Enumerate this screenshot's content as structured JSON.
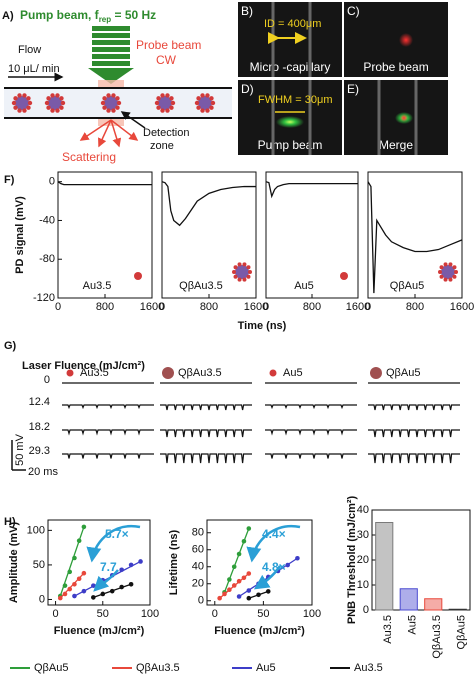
{
  "panel_a": {
    "label": "A)",
    "pump": "Pump beam, f",
    "rep": "rep",
    "pump_rate": " = 50 Hz",
    "flow": "Flow",
    "rate": "10 μL/ min",
    "probe": "Probe beam",
    "cw": "CW",
    "detection": "Detection",
    "zone": "zone",
    "scattering": "Scattering"
  },
  "panel_b": {
    "label": "B)",
    "id": "ID = 400μm",
    "caption": "Micro -capillary"
  },
  "panel_c": {
    "label": "C)",
    "caption": "Probe beam"
  },
  "panel_d": {
    "label": "D)",
    "fwhm": "FWHM = 30μm",
    "caption": "Pump beam"
  },
  "panel_e": {
    "label": "E)",
    "caption": "Merge"
  },
  "panel_f": {
    "label": "F)",
    "ylabel": "PD signal (mV)",
    "xlabel": "Time (ns)"
  },
  "panel_g": {
    "label": "G)",
    "title": "Laser Fluence (mJ/cm²)",
    "columns": [
      "Au3.5",
      "QβAu3.5",
      "Au5",
      "QβAu5"
    ],
    "rows": [
      0,
      12.4,
      18.2,
      29.3
    ],
    "scale_v": "50 mV",
    "scale_t": "20 ms"
  },
  "panel_h": {
    "label": "H)"
  },
  "chart_data": [
    {
      "type": "line",
      "x": [
        0,
        50,
        100,
        150,
        200,
        300,
        400,
        600,
        800,
        1000,
        1200,
        1400,
        1600
      ],
      "series": [
        {
          "name": "Au3.5",
          "color": "#111111",
          "values": [
            0,
            -2,
            -3,
            -3,
            -3,
            -3,
            -3,
            -3,
            -3,
            -3,
            -3,
            -3,
            -3
          ]
        }
      ],
      "xlim": [
        0,
        1600
      ],
      "xticks": [
        0,
        800,
        1600
      ],
      "ylim": [
        -120,
        10
      ],
      "yticks": [
        0,
        -40,
        -80,
        -120
      ]
    },
    {
      "type": "line",
      "x": [
        0,
        50,
        100,
        150,
        200,
        300,
        400,
        600,
        800,
        1000,
        1200,
        1400,
        1600
      ],
      "series": [
        {
          "name": "QβAu3.5",
          "color": "#111111",
          "values": [
            0,
            -1,
            -5,
            -30,
            -40,
            -45,
            -38,
            -20,
            -12,
            -8,
            -6,
            -5,
            -5
          ]
        }
      ],
      "xlim": [
        0,
        1600
      ],
      "xticks": [
        0,
        800,
        1600
      ],
      "ylim": [
        -120,
        10
      ]
    },
    {
      "type": "line",
      "x": [
        0,
        50,
        100,
        150,
        200,
        300,
        400,
        600,
        800,
        1000,
        1200,
        1400,
        1600
      ],
      "series": [
        {
          "name": "Au5",
          "color": "#111111",
          "values": [
            0,
            -1,
            -15,
            -8,
            -5,
            -3,
            -2,
            -2,
            -2,
            -2,
            -2,
            -2,
            -2
          ]
        }
      ],
      "xlim": [
        0,
        1600
      ],
      "xticks": [
        0,
        800,
        1600
      ],
      "ylim": [
        -120,
        10
      ]
    },
    {
      "type": "line",
      "x": [
        0,
        50,
        100,
        150,
        200,
        300,
        400,
        600,
        800,
        1000,
        1200,
        1400,
        1600
      ],
      "series": [
        {
          "name": "QβAu5",
          "color": "#111111",
          "values": [
            0,
            -5,
            -115,
            -40,
            -45,
            -55,
            -62,
            -68,
            -72,
            -72,
            -70,
            -65,
            -60
          ]
        }
      ],
      "xlim": [
        0,
        1600
      ],
      "xticks": [
        0,
        800,
        1600
      ],
      "ylim": [
        -120,
        10
      ]
    },
    {
      "type": "scatter",
      "xlabel": "Fluence (mJ/cm²)",
      "ylabel": "Amplitude (mV)",
      "xlim": [
        -8,
        100
      ],
      "xticks": [
        0,
        50,
        100
      ],
      "ylim": [
        -8,
        115
      ],
      "yticks": [
        0,
        50,
        100
      ],
      "annotations": [
        "5.7×",
        "7.7"
      ],
      "series": [
        {
          "name": "QβAu5",
          "color": "#2e9e3a",
          "x": [
            5,
            10,
            15,
            20,
            25,
            30
          ],
          "values": [
            5,
            20,
            40,
            60,
            85,
            105
          ]
        },
        {
          "name": "QβAu3.5",
          "color": "#e8483b",
          "x": [
            5,
            10,
            15,
            20,
            25,
            30
          ],
          "values": [
            2,
            8,
            15,
            22,
            30,
            38
          ]
        },
        {
          "name": "Au5",
          "color": "#3d3dc8",
          "x": [
            20,
            30,
            40,
            50,
            60,
            70,
            80,
            90
          ],
          "values": [
            5,
            12,
            20,
            28,
            35,
            43,
            50,
            55
          ]
        },
        {
          "name": "Au3.5",
          "color": "#111111",
          "x": [
            40,
            50,
            60,
            70,
            80
          ],
          "values": [
            3,
            8,
            12,
            18,
            22
          ]
        }
      ]
    },
    {
      "type": "scatter",
      "xlabel": "Fluence (mJ/cm²)",
      "ylabel": "Lifetime (ns)",
      "xlim": [
        -8,
        100
      ],
      "xticks": [
        0,
        50,
        100
      ],
      "ylim": [
        -5,
        95
      ],
      "yticks": [
        0,
        20,
        40,
        60,
        80
      ],
      "annotations": [
        "4.4×",
        "4.8×"
      ],
      "series": [
        {
          "color": "#2e9e3a",
          "x": [
            10,
            15,
            20,
            25,
            30,
            35
          ],
          "values": [
            10,
            25,
            40,
            55,
            70,
            85
          ]
        },
        {
          "color": "#e8483b",
          "x": [
            5,
            10,
            15,
            20,
            25,
            30,
            35
          ],
          "values": [
            3,
            8,
            13,
            18,
            23,
            27,
            32
          ]
        },
        {
          "color": "#3d3dc8",
          "x": [
            25,
            35,
            45,
            55,
            65,
            75,
            85
          ],
          "values": [
            5,
            12,
            20,
            28,
            35,
            42,
            50
          ]
        },
        {
          "color": "#111111",
          "x": [
            35,
            45,
            55
          ],
          "values": [
            3,
            7,
            11
          ]
        }
      ]
    },
    {
      "type": "bar",
      "ylabel": "PNB Threshold (mJ/cm²)",
      "categories": [
        "Au3.5",
        "Au5",
        "QβAu3.5",
        "QβAu5"
      ],
      "values": [
        35,
        8.5,
        4.5,
        0.3
      ],
      "colors": [
        "#7a7a7a",
        "#4b4bd0",
        "#e8483b",
        "#333333"
      ],
      "ylim": [
        0,
        40
      ],
      "yticks": [
        0,
        10,
        20,
        30,
        40
      ]
    }
  ]
}
